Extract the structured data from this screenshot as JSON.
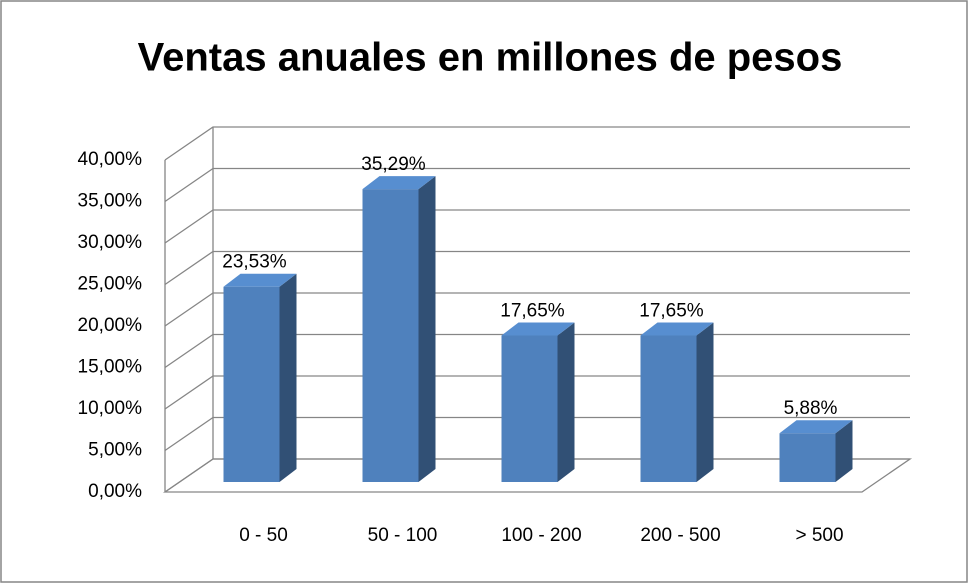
{
  "chart_data": {
    "type": "bar",
    "title": "Ventas anuales en millones de pesos",
    "categories": [
      "0 - 50",
      "50 - 100",
      "100 - 200",
      "200 - 500",
      "> 500"
    ],
    "values": [
      23.53,
      35.29,
      17.65,
      17.65,
      5.88
    ],
    "value_labels": [
      "23,53%",
      "35,29%",
      "17,65%",
      "17,65%",
      "5,88%"
    ],
    "color": "#4f81bd",
    "ylim": [
      0,
      40
    ],
    "yticks": [
      {
        "value": 0,
        "label": "0,00%"
      },
      {
        "value": 5,
        "label": "5,00%"
      },
      {
        "value": 10,
        "label": "10,00%"
      },
      {
        "value": 15,
        "label": "15,00%"
      },
      {
        "value": 20,
        "label": "20,00%"
      },
      {
        "value": 25,
        "label": "25,00%"
      },
      {
        "value": 30,
        "label": "30,00%"
      },
      {
        "value": 35,
        "label": "35,00%"
      },
      {
        "value": 40,
        "label": "40,00%"
      }
    ],
    "grid": true
  }
}
